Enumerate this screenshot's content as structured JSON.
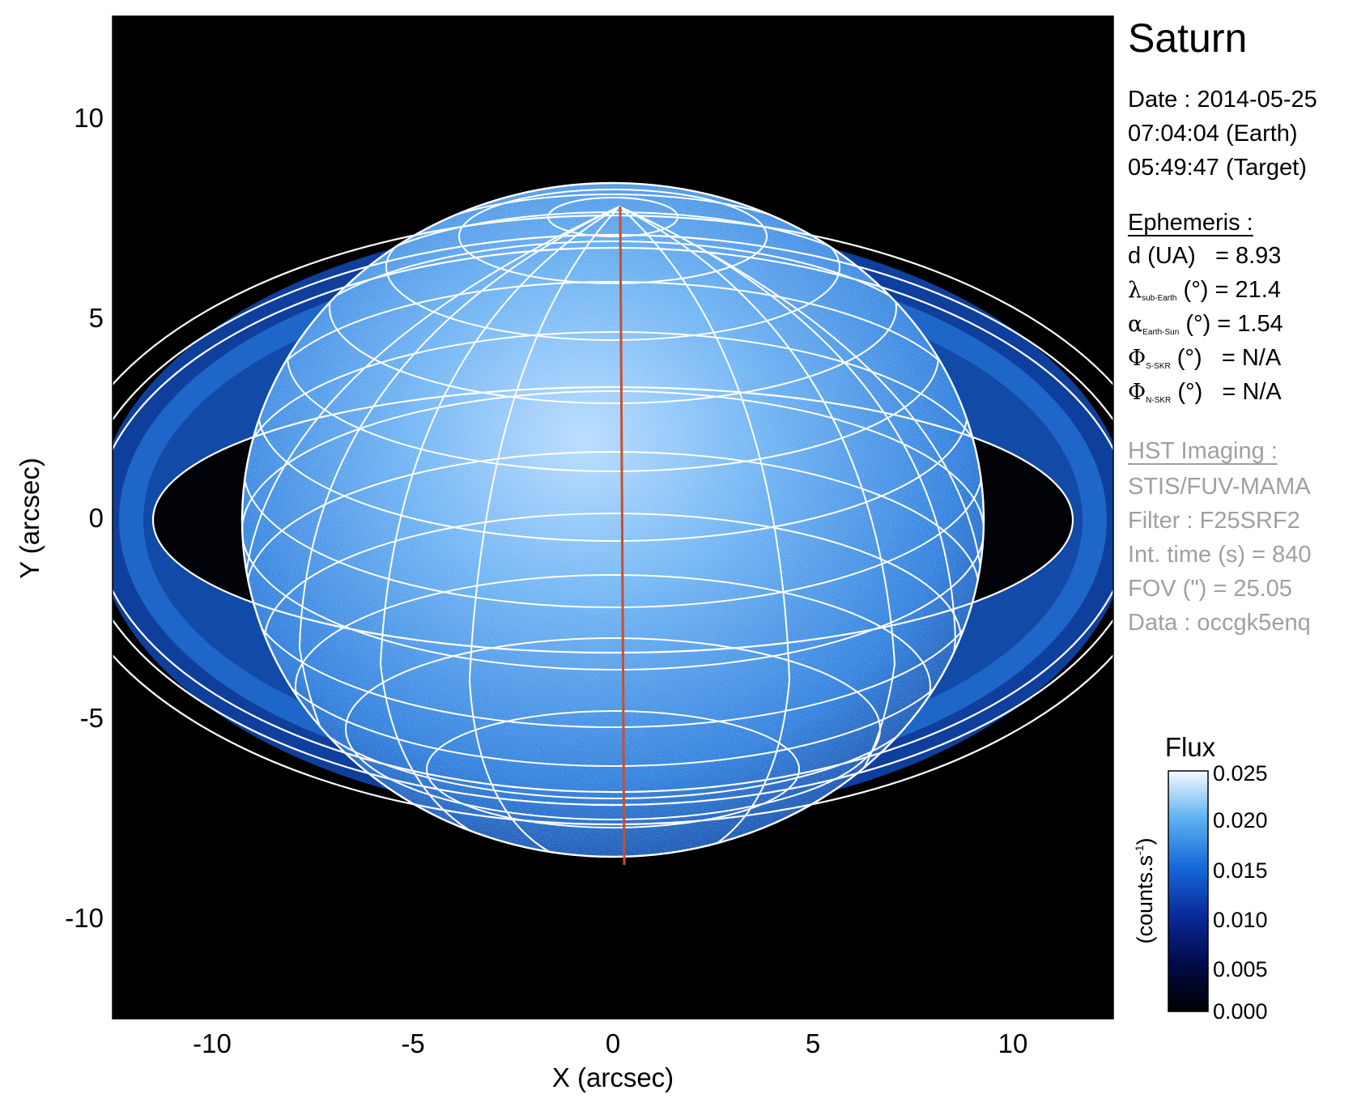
{
  "planet": "Saturn",
  "observation": {
    "date_line": "Date : 2014-05-25",
    "time_earth": "07:04:04 (Earth)",
    "time_target": "05:49:47 (Target)"
  },
  "ephemeris": {
    "heading": "Ephemeris :",
    "d_label": "d (UA)",
    "d_value": "= 8.93",
    "lambda_symbol": "λ",
    "lambda_sub": "sub-Earth",
    "lambda_unit": " (°)",
    "lambda_value": " = 21.4",
    "alpha_symbol": "α",
    "alpha_sub": "Earth-Sun",
    "alpha_unit": " (°)",
    "alpha_value": " = 1.54",
    "phi_s_symbol": "Φ",
    "phi_s_sub": "S-SKR",
    "phi_s_unit": " (°)",
    "phi_s_value": "= N/A",
    "phi_n_symbol": "Φ",
    "phi_n_sub": "N-SKR",
    "phi_n_unit": " (°)",
    "phi_n_value": "= N/A"
  },
  "hst": {
    "heading": "HST Imaging :",
    "instrument": "STIS/FUV-MAMA",
    "filter": "Filter : F25SRF2",
    "int_time": "Int. time (s) = 840",
    "fov": "FOV (\") = 25.05",
    "dataset": "Data : occgk5enq"
  },
  "axes": {
    "xlabel": "X (arcsec)",
    "ylabel": "Y (arcsec)",
    "xticks": [
      "-10",
      "-5",
      "0",
      "5",
      "10"
    ],
    "yticks": [
      "10",
      "5",
      "0",
      "-5",
      "-10"
    ]
  },
  "colorbar": {
    "title": "Flux",
    "unit_main": "(counts.s",
    "unit_sup": "-1",
    "unit_close": ")",
    "ticks": [
      "0.025",
      "0.020",
      "0.015",
      "0.010",
      "0.005",
      "0.000"
    ]
  },
  "colors": {
    "background": "#000000",
    "planet_glow": "#4fa0e8",
    "ring": "#1a5fc0",
    "grid": "#ffffff",
    "meridian": "#c8502a"
  }
}
